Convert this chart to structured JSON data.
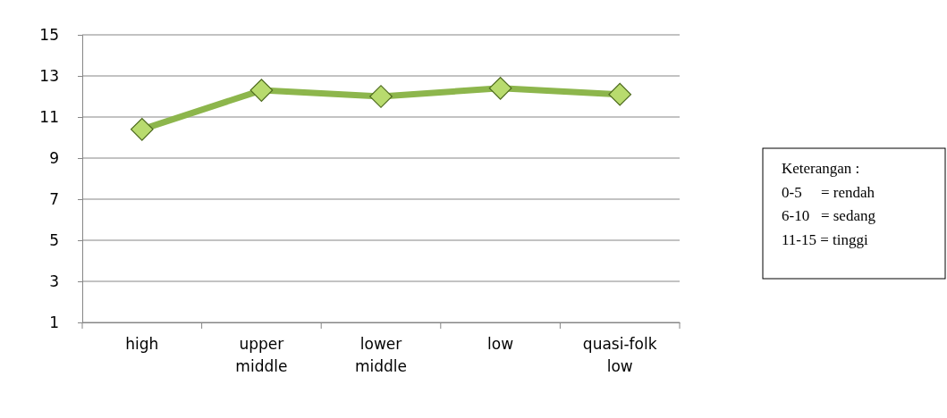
{
  "chart_data": {
    "type": "line",
    "categories": [
      "high",
      "upper middle",
      "lower middle",
      "low",
      "quasi-folk low"
    ],
    "series": [
      {
        "color": "#8db64c",
        "values": [
          10.4,
          12.3,
          12.0,
          12.4,
          12.1
        ]
      }
    ],
    "ylim": [
      1,
      15
    ],
    "yticks": [
      1,
      3,
      5,
      7,
      9,
      11,
      13,
      15
    ],
    "grid": "y",
    "marker": "diamond",
    "line_style": "solid",
    "annotations": [
      "Keterangan :",
      "0-5     = rendah",
      "6-10   = sedang",
      "11-15 = tinggi"
    ]
  }
}
